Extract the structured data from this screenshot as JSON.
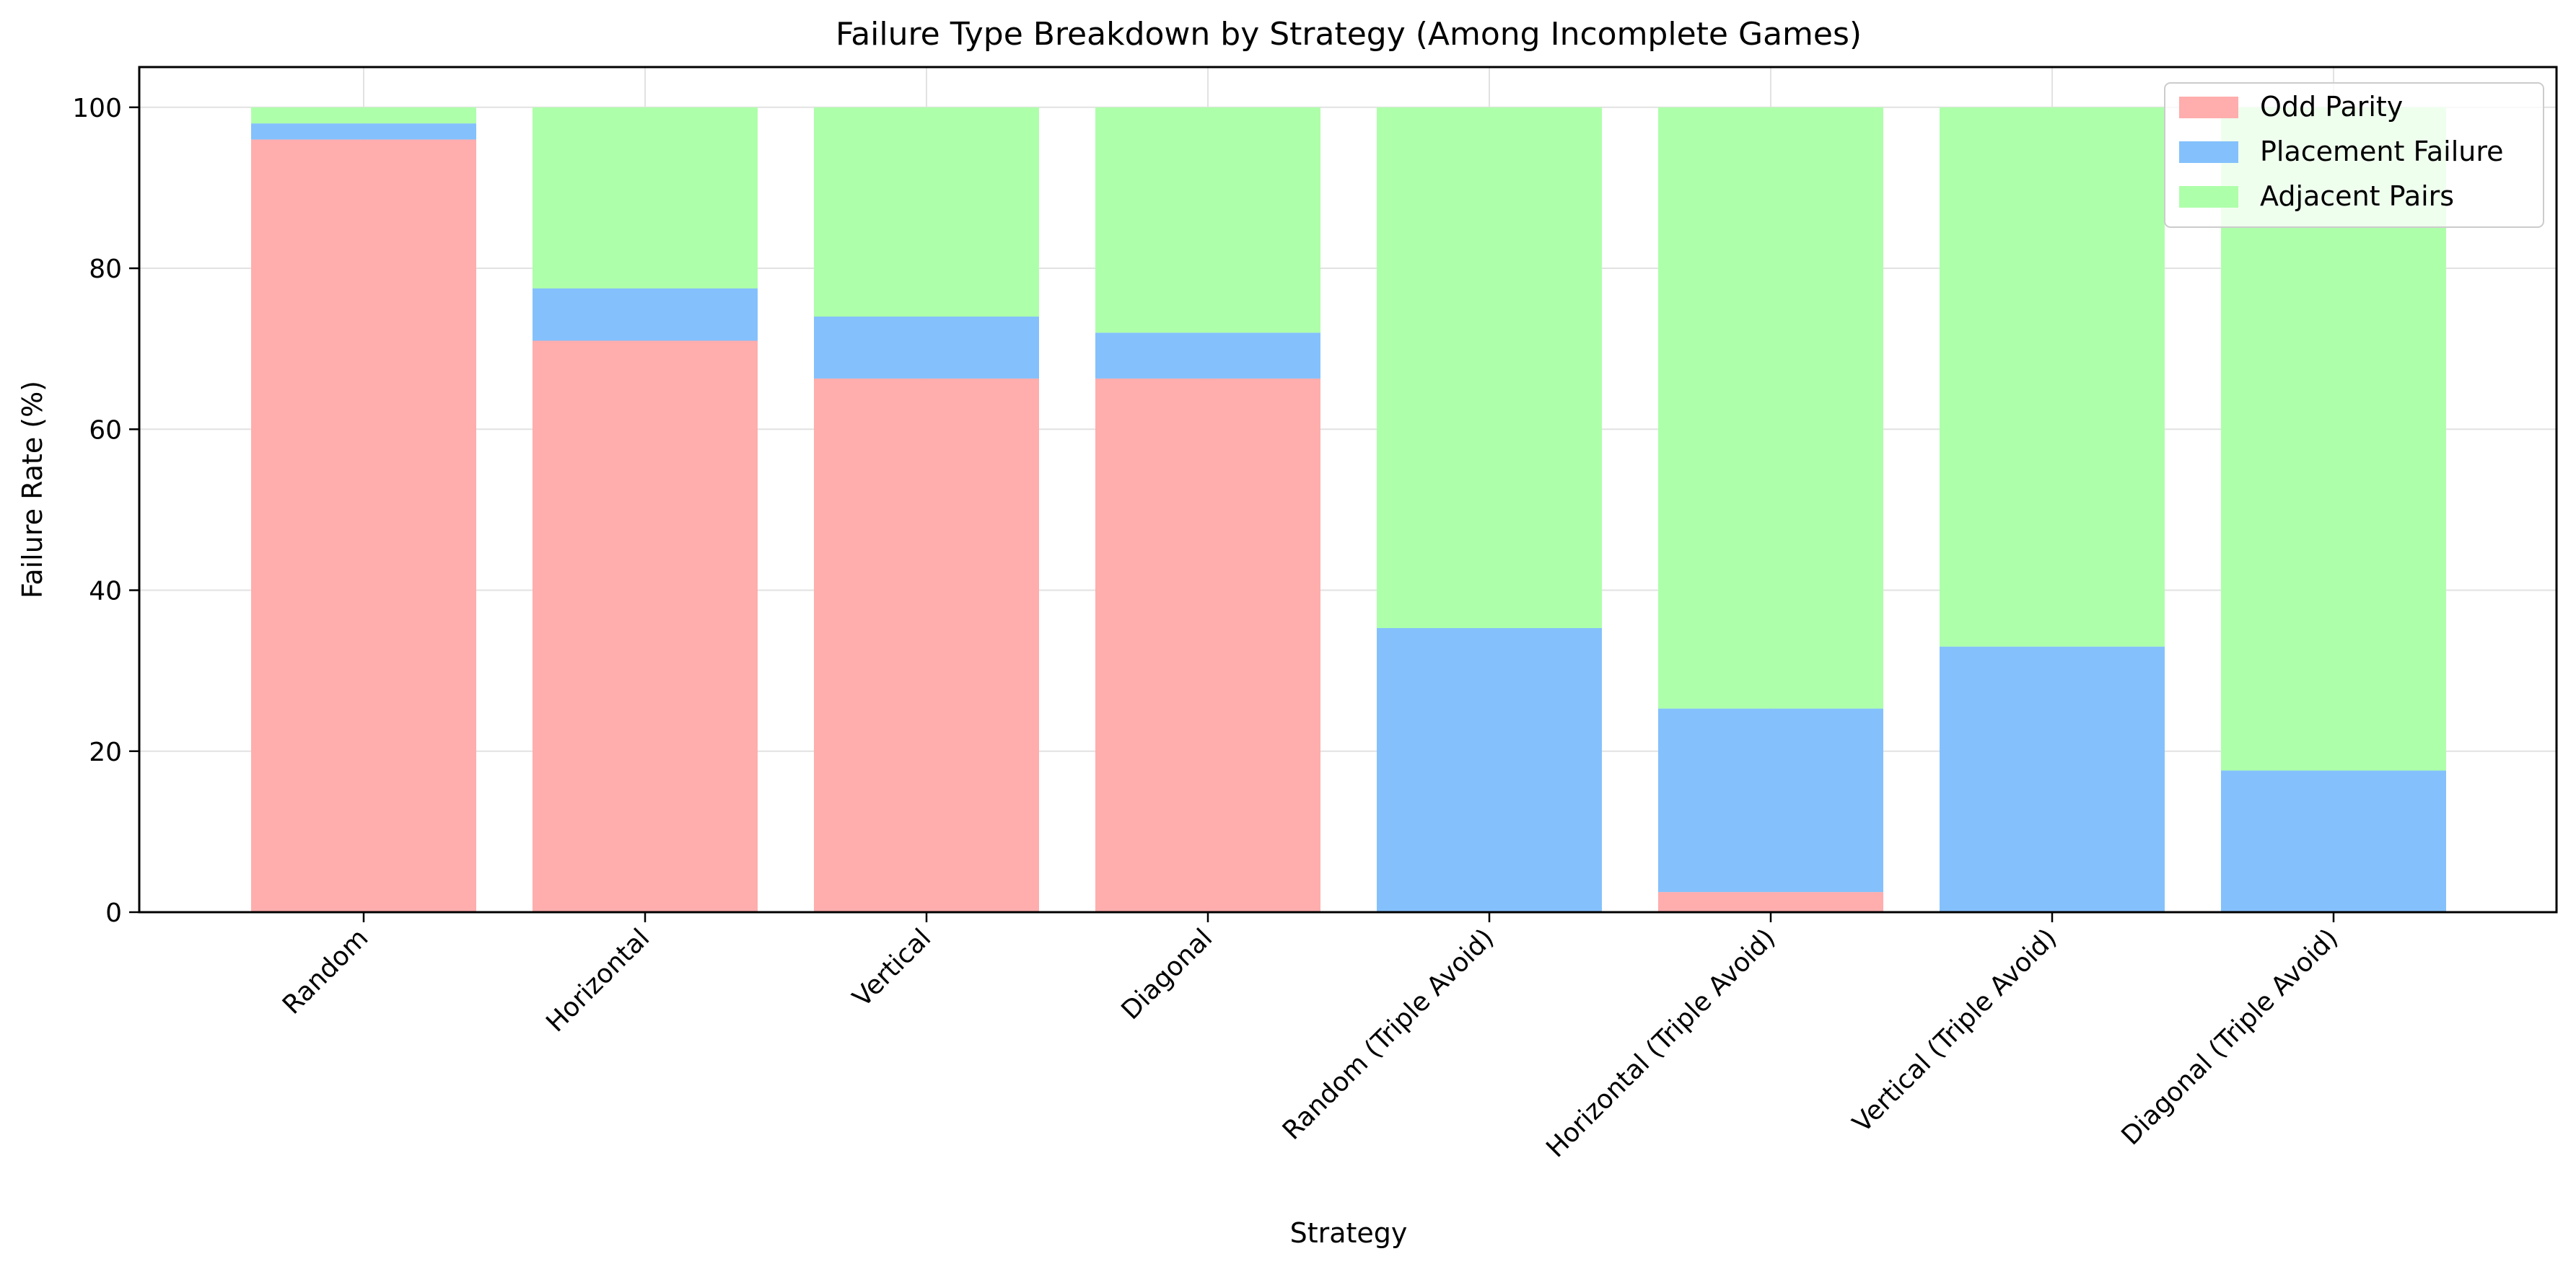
{
  "chart_data": {
    "type": "bar",
    "stacked": true,
    "title": "Failure Type Breakdown by Strategy (Among Incomplete Games)",
    "xlabel": "Strategy",
    "ylabel": "Failure Rate (%)",
    "ylim": [
      0,
      105
    ],
    "yticks": [
      0,
      20,
      40,
      60,
      80,
      100
    ],
    "grid": true,
    "legend_position": "top-right",
    "categories": [
      "Random",
      "Horizontal",
      "Vertical",
      "Diagonal",
      "Random (Triple Avoid)",
      "Horizontal (Triple Avoid)",
      "Vertical (Triple Avoid)",
      "Diagonal (Triple Avoid)"
    ],
    "series": [
      {
        "name": "Odd Parity",
        "color": "#ffadad",
        "values": [
          96,
          71,
          66.3,
          66.3,
          0,
          2.5,
          0,
          0
        ]
      },
      {
        "name": "Placement Failure",
        "color": "#84c1fc",
        "values": [
          2,
          6.5,
          7.7,
          5.7,
          35.3,
          22.8,
          33,
          17.6
        ]
      },
      {
        "name": "Adjacent Pairs",
        "color": "#aeffaa",
        "values": [
          2,
          22.5,
          26,
          28,
          64.7,
          74.7,
          67,
          82.4
        ]
      }
    ]
  }
}
